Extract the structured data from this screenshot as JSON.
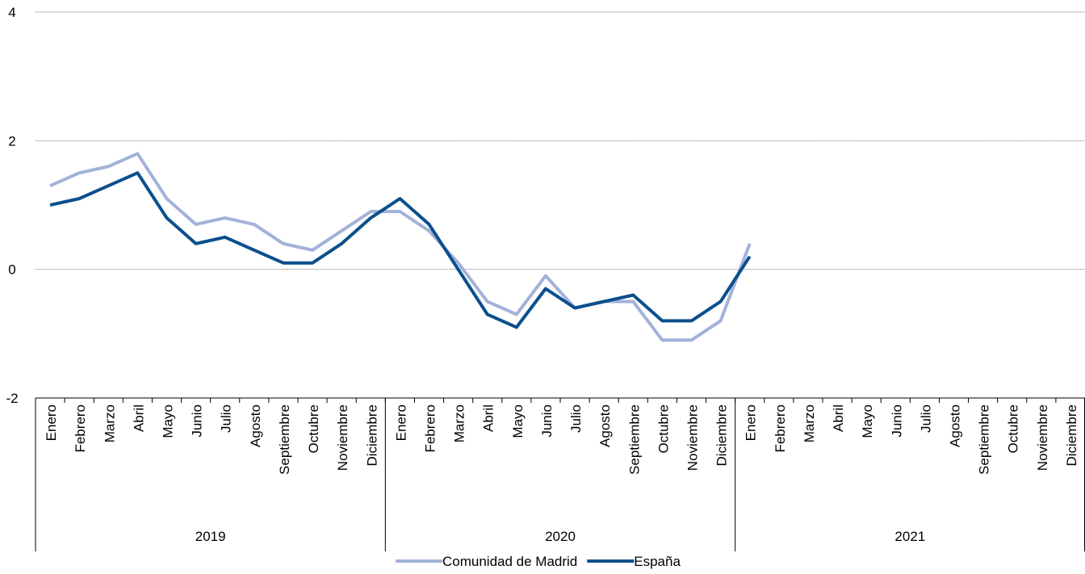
{
  "chart_data": {
    "type": "line",
    "title": "",
    "xlabel": "",
    "ylabel": "",
    "ylim": [
      -2,
      4
    ],
    "yticks": [
      -2,
      0,
      2,
      4
    ],
    "grid": true,
    "legend_position": "bottom",
    "years": [
      {
        "label": "2019",
        "months": [
          "Enero",
          "Febrero",
          "Marzo",
          "Abril",
          "Mayo",
          "Junio",
          "Julio",
          "Agosto",
          "Septiembre",
          "Octubre",
          "Noviembre",
          "Diciembre"
        ]
      },
      {
        "label": "2020",
        "months": [
          "Enero",
          "Febrero",
          "Marzo",
          "Abril",
          "Mayo",
          "Junio",
          "Julio",
          "Agosto",
          "Septiembre",
          "Octubre",
          "Noviembre",
          "Diciembre"
        ]
      },
      {
        "label": "2021",
        "months": [
          "Enero",
          "Febrero",
          "Marzo",
          "Abril",
          "Mayo",
          "Junio",
          "Julio",
          "Agosto",
          "Septiembre",
          "Octubre",
          "Noviembre",
          "Diciembre"
        ]
      }
    ],
    "series": [
      {
        "name": "Comunidad de Madrid",
        "color": "#a3b2d8",
        "values": [
          1.3,
          1.5,
          1.6,
          1.8,
          1.1,
          0.7,
          0.8,
          0.7,
          0.4,
          0.3,
          0.6,
          0.9,
          0.9,
          0.6,
          0.1,
          -0.5,
          -0.7,
          -0.1,
          -0.6,
          -0.5,
          -0.5,
          -1.1,
          -1.1,
          -0.8,
          0.4
        ]
      },
      {
        "name": "España",
        "color": "#0b4f8c",
        "values": [
          1.0,
          1.1,
          1.3,
          1.5,
          0.8,
          0.4,
          0.5,
          0.3,
          0.1,
          0.1,
          0.4,
          0.8,
          1.1,
          0.7,
          0.0,
          -0.7,
          -0.9,
          -0.3,
          -0.6,
          -0.5,
          -0.4,
          -0.8,
          -0.8,
          -0.5,
          0.2
        ]
      }
    ]
  }
}
